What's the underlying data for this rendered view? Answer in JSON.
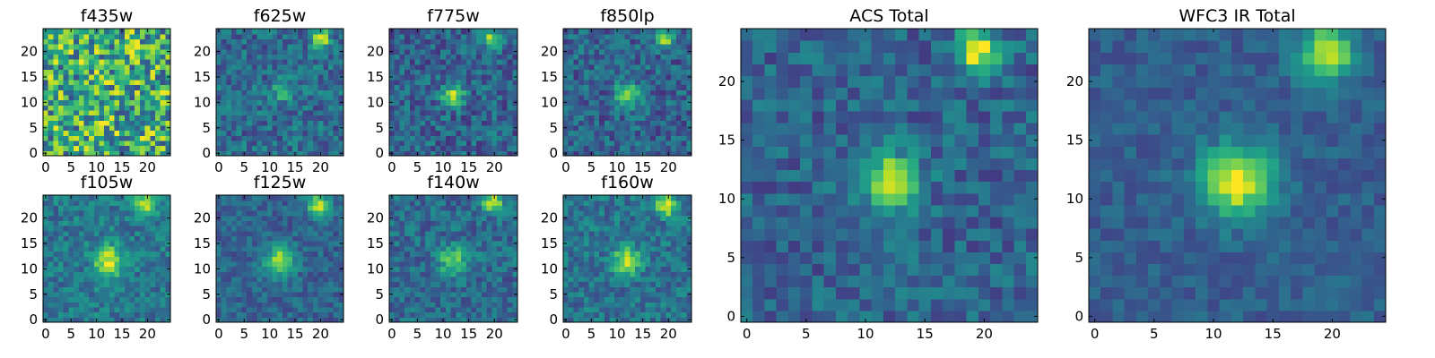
{
  "figure": {
    "layout": "2 rows of 4 small filter cutouts on the left, 2 large stacked cutouts on the right",
    "colormap": "viridis"
  },
  "chart_data": [
    {
      "type": "heatmap",
      "title": "f435w",
      "grid_size": 25,
      "xticks": [
        "0",
        "5",
        "10",
        "15",
        "20"
      ],
      "yticks": [
        "0",
        "5",
        "10",
        "15",
        "20"
      ],
      "xlim": [
        0,
        25
      ],
      "ylim": [
        0,
        25
      ],
      "noise_level": 0.75,
      "background_level": 0.62,
      "sources": []
    },
    {
      "type": "heatmap",
      "title": "f625w",
      "grid_size": 25,
      "xticks": [
        "0",
        "5",
        "10",
        "15",
        "20"
      ],
      "yticks": [
        "0",
        "5",
        "10",
        "15",
        "20"
      ],
      "xlim": [
        0,
        25
      ],
      "ylim": [
        0,
        25
      ],
      "noise_level": 0.35,
      "background_level": 0.35,
      "sources": [
        {
          "x": 12,
          "y": 12,
          "peak": 0.25,
          "sigma": 1.6
        },
        {
          "x": 20,
          "y": 22.5,
          "peak": 0.65,
          "sigma": 1.2
        }
      ]
    },
    {
      "type": "heatmap",
      "title": "f775w",
      "grid_size": 25,
      "xticks": [
        "0",
        "5",
        "10",
        "15",
        "20"
      ],
      "yticks": [
        "0",
        "5",
        "10",
        "15",
        "20"
      ],
      "xlim": [
        0,
        25
      ],
      "ylim": [
        0,
        25
      ],
      "noise_level": 0.35,
      "background_level": 0.32,
      "sources": [
        {
          "x": 12,
          "y": 11.5,
          "peak": 0.55,
          "sigma": 1.5
        },
        {
          "x": 19.5,
          "y": 22.5,
          "peak": 0.6,
          "sigma": 1.2
        }
      ]
    },
    {
      "type": "heatmap",
      "title": "f850lp",
      "grid_size": 25,
      "xticks": [
        "0",
        "5",
        "10",
        "15",
        "20"
      ],
      "yticks": [
        "0",
        "5",
        "10",
        "15",
        "20"
      ],
      "xlim": [
        0,
        25
      ],
      "ylim": [
        0,
        25
      ],
      "noise_level": 0.35,
      "background_level": 0.32,
      "sources": [
        {
          "x": 12,
          "y": 11.5,
          "peak": 0.55,
          "sigma": 1.6
        },
        {
          "x": 19.5,
          "y": 22.5,
          "peak": 0.6,
          "sigma": 1.2
        }
      ]
    },
    {
      "type": "heatmap",
      "title": "f105w",
      "grid_size": 25,
      "xticks": [
        "0",
        "5",
        "10",
        "15",
        "20"
      ],
      "yticks": [
        "0",
        "5",
        "10",
        "15",
        "20"
      ],
      "xlim": [
        0,
        25
      ],
      "ylim": [
        0,
        25
      ],
      "noise_level": 0.3,
      "background_level": 0.4,
      "sources": [
        {
          "x": 12.5,
          "y": 11.5,
          "peak": 0.6,
          "sigma": 2.0
        },
        {
          "x": 19.5,
          "y": 22.5,
          "peak": 0.55,
          "sigma": 1.5
        }
      ]
    },
    {
      "type": "heatmap",
      "title": "f125w",
      "grid_size": 25,
      "xticks": [
        "0",
        "5",
        "10",
        "15",
        "20"
      ],
      "yticks": [
        "0",
        "5",
        "10",
        "15",
        "20"
      ],
      "xlim": [
        0,
        25
      ],
      "ylim": [
        0,
        25
      ],
      "noise_level": 0.25,
      "background_level": 0.32,
      "sources": [
        {
          "x": 12,
          "y": 11.5,
          "peak": 0.6,
          "sigma": 2.0
        },
        {
          "x": 19.5,
          "y": 22.5,
          "peak": 0.6,
          "sigma": 1.5
        }
      ]
    },
    {
      "type": "heatmap",
      "title": "f140w",
      "grid_size": 25,
      "xticks": [
        "0",
        "5",
        "10",
        "15",
        "20"
      ],
      "yticks": [
        "0",
        "5",
        "10",
        "15",
        "20"
      ],
      "xlim": [
        0,
        25
      ],
      "ylim": [
        0,
        25
      ],
      "noise_level": 0.3,
      "background_level": 0.35,
      "sources": [
        {
          "x": 12,
          "y": 11.5,
          "peak": 0.45,
          "sigma": 2.0
        },
        {
          "x": 19.5,
          "y": 23,
          "peak": 0.65,
          "sigma": 1.3
        }
      ]
    },
    {
      "type": "heatmap",
      "title": "f160w",
      "grid_size": 25,
      "xticks": [
        "0",
        "5",
        "10",
        "15",
        "20"
      ],
      "yticks": [
        "0",
        "5",
        "10",
        "15",
        "20"
      ],
      "xlim": [
        0,
        25
      ],
      "ylim": [
        0,
        25
      ],
      "noise_level": 0.3,
      "background_level": 0.38,
      "sources": [
        {
          "x": 12,
          "y": 11.5,
          "peak": 0.6,
          "sigma": 1.8
        },
        {
          "x": 19.5,
          "y": 22.5,
          "peak": 0.6,
          "sigma": 1.4
        }
      ]
    },
    {
      "type": "heatmap",
      "title": "ACS Total",
      "grid_size": 25,
      "xticks": [
        "0",
        "5",
        "10",
        "15",
        "20"
      ],
      "yticks": [
        "0",
        "5",
        "10",
        "15",
        "20"
      ],
      "xlim": [
        0,
        25
      ],
      "ylim": [
        0,
        25
      ],
      "noise_level": 0.3,
      "background_level": 0.32,
      "sources": [
        {
          "x": 12,
          "y": 11.5,
          "peak": 0.62,
          "sigma": 1.7
        },
        {
          "x": 19.5,
          "y": 22.5,
          "peak": 0.65,
          "sigma": 1.3
        }
      ]
    },
    {
      "type": "heatmap",
      "title": "WFC3 IR Total",
      "grid_size": 25,
      "xticks": [
        "0",
        "5",
        "10",
        "15",
        "20"
      ],
      "yticks": [
        "0",
        "5",
        "10",
        "15",
        "20"
      ],
      "xlim": [
        0,
        25
      ],
      "ylim": [
        0,
        25
      ],
      "noise_level": 0.18,
      "background_level": 0.3,
      "sources": [
        {
          "x": 12,
          "y": 11.5,
          "peak": 0.68,
          "sigma": 2.1
        },
        {
          "x": 19.5,
          "y": 22.5,
          "peak": 0.62,
          "sigma": 1.6
        }
      ]
    }
  ]
}
